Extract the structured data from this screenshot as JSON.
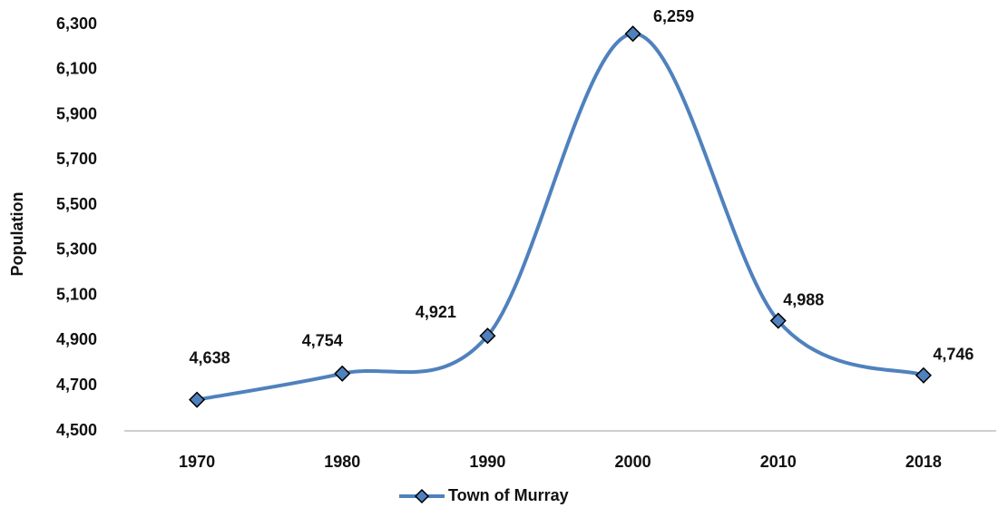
{
  "chart_data": {
    "type": "line",
    "y_label": "Population",
    "categories": [
      "1970",
      "1980",
      "1990",
      "2000",
      "2010",
      "2018"
    ],
    "series": [
      {
        "name": "Town of Murray",
        "color": "#4f81bd",
        "values": [
          4638,
          4754,
          4921,
          6259,
          4988,
          4746
        ],
        "value_labels": [
          "4,638",
          "4,754",
          "4,921",
          "6,259",
          "4,988",
          "4,746"
        ]
      }
    ],
    "ylim": [
      4500,
      6300
    ],
    "yticks": [
      {
        "value": 4500,
        "label": "4,500"
      },
      {
        "value": 4700,
        "label": "4,700"
      },
      {
        "value": 4900,
        "label": "4,900"
      },
      {
        "value": 5100,
        "label": "5,100"
      },
      {
        "value": 5300,
        "label": "5,300"
      },
      {
        "value": 5500,
        "label": "5,500"
      },
      {
        "value": 5700,
        "label": "5,700"
      },
      {
        "value": 5900,
        "label": "5,900"
      },
      {
        "value": 6100,
        "label": "6,100"
      },
      {
        "value": 6300,
        "label": "6,300"
      }
    ],
    "smooth": true,
    "grid": false,
    "legend": "bottom"
  }
}
